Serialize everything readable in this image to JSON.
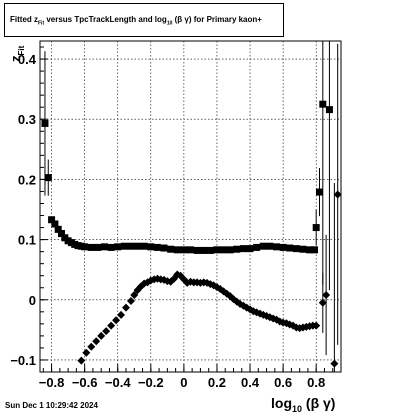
{
  "title": "Fitted  z_Fit  versus TpcTrackLength and log_10 (β γ) for Primary kaon+",
  "title_parts": {
    "t1": "Fitted  z",
    "sub1": "Fit",
    "t2": "  versus TpcTrackLength and log",
    "sub2": "10",
    "t3": " (β  γ) for Primary kaon+"
  },
  "footer": "Sun Dec  1 10:29:42 2024",
  "colors": {
    "marker": "#000000",
    "grid": "#000000",
    "background": "#ffffff"
  },
  "chart_data": {
    "type": "scatter",
    "title": "Fitted  z_Fit  versus TpcTrackLength and log_10 (β γ) for Primary kaon+",
    "xlabel": "log10 (β γ)",
    "ylabel": "zFit",
    "xlabel_parts": {
      "main": "log",
      "sub": "10",
      "rest": " (β γ)"
    },
    "ylabel_parts": {
      "main": "z",
      "sub": "Fit"
    },
    "xlim": [
      -0.87,
      0.95
    ],
    "ylim": [
      -0.12,
      0.43
    ],
    "grid": true,
    "x_ticks": [
      {
        "v": -0.8,
        "label": "−0.8"
      },
      {
        "v": -0.6,
        "label": "−0.6"
      },
      {
        "v": -0.4,
        "label": "−0.4"
      },
      {
        "v": -0.2,
        "label": "−0.2"
      },
      {
        "v": 0.0,
        "label": "0"
      },
      {
        "v": 0.2,
        "label": "0.2"
      },
      {
        "v": 0.4,
        "label": "0.4"
      },
      {
        "v": 0.6,
        "label": "0.6"
      },
      {
        "v": 0.8,
        "label": "0.8"
      }
    ],
    "y_ticks": [
      {
        "v": -0.1,
        "label": "−0.1"
      },
      {
        "v": 0.0,
        "label": "0"
      },
      {
        "v": 0.1,
        "label": "0.1"
      },
      {
        "v": 0.2,
        "label": "0.2"
      },
      {
        "v": 0.3,
        "label": "0.3"
      },
      {
        "v": 0.4,
        "label": "0.4"
      }
    ],
    "series": [
      {
        "points": [
          [
            -0.84,
            0.293,
            0.12
          ],
          [
            -0.82,
            0.203,
            0.03
          ],
          [
            -0.8,
            0.133,
            0
          ],
          [
            -0.78,
            0.126,
            0
          ],
          [
            -0.76,
            0.117,
            0
          ],
          [
            -0.74,
            0.11,
            0
          ],
          [
            -0.72,
            0.103,
            0
          ],
          [
            -0.7,
            0.098,
            0
          ],
          [
            -0.68,
            0.095,
            0
          ],
          [
            -0.66,
            0.092,
            0
          ],
          [
            -0.64,
            0.09,
            0
          ],
          [
            -0.62,
            0.089,
            0
          ],
          [
            -0.6,
            0.088,
            0
          ],
          [
            -0.56,
            0.087,
            0
          ],
          [
            -0.52,
            0.087,
            0
          ],
          [
            -0.48,
            0.088,
            0
          ],
          [
            -0.44,
            0.087,
            0
          ],
          [
            -0.4,
            0.088,
            0
          ],
          [
            -0.36,
            0.089,
            0
          ],
          [
            -0.32,
            0.089,
            0
          ],
          [
            -0.28,
            0.089,
            0
          ],
          [
            -0.24,
            0.089,
            0
          ],
          [
            -0.2,
            0.088,
            0
          ],
          [
            -0.16,
            0.087,
            0
          ],
          [
            -0.12,
            0.086,
            0
          ],
          [
            -0.08,
            0.084,
            0
          ],
          [
            -0.04,
            0.083,
            0
          ],
          [
            0.0,
            0.083,
            0
          ],
          [
            0.04,
            0.083,
            0
          ],
          [
            0.08,
            0.082,
            0
          ],
          [
            0.12,
            0.082,
            0
          ],
          [
            0.16,
            0.082,
            0
          ],
          [
            0.2,
            0.083,
            0
          ],
          [
            0.24,
            0.083,
            0
          ],
          [
            0.28,
            0.083,
            0
          ],
          [
            0.32,
            0.084,
            0
          ],
          [
            0.36,
            0.085,
            0
          ],
          [
            0.4,
            0.085,
            0
          ],
          [
            0.44,
            0.087,
            0
          ],
          [
            0.48,
            0.089,
            0
          ],
          [
            0.52,
            0.089,
            0
          ],
          [
            0.56,
            0.088,
            0
          ],
          [
            0.6,
            0.087,
            0
          ],
          [
            0.64,
            0.086,
            0
          ],
          [
            0.68,
            0.085,
            0
          ],
          [
            0.72,
            0.084,
            0
          ],
          [
            0.76,
            0.083,
            0
          ],
          [
            0.79,
            0.083,
            0
          ],
          [
            0.8,
            0.12,
            0.03
          ],
          [
            0.82,
            0.179,
            0.04
          ],
          [
            0.84,
            0.325,
            0.3
          ],
          [
            0.88,
            0.316,
            0.3
          ]
        ]
      },
      {
        "points": [
          [
            -0.62,
            -0.101,
            0
          ],
          [
            -0.59,
            -0.088,
            0
          ],
          [
            -0.56,
            -0.078,
            0
          ],
          [
            -0.53,
            -0.069,
            0
          ],
          [
            -0.5,
            -0.06,
            0
          ],
          [
            -0.47,
            -0.052,
            0
          ],
          [
            -0.44,
            -0.043,
            0
          ],
          [
            -0.41,
            -0.034,
            0
          ],
          [
            -0.38,
            -0.025,
            0
          ],
          [
            -0.35,
            -0.013,
            0
          ],
          [
            -0.32,
            -0.002,
            0
          ],
          [
            -0.3,
            0.008,
            0
          ],
          [
            -0.28,
            0.016,
            0
          ],
          [
            -0.26,
            0.022,
            0
          ],
          [
            -0.24,
            0.027,
            0
          ],
          [
            -0.22,
            0.029,
            0
          ],
          [
            -0.2,
            0.032,
            0
          ],
          [
            -0.18,
            0.034,
            0
          ],
          [
            -0.16,
            0.035,
            0
          ],
          [
            -0.14,
            0.034,
            0
          ],
          [
            -0.12,
            0.033,
            0
          ],
          [
            -0.1,
            0.031,
            0
          ],
          [
            -0.08,
            0.03,
            0
          ],
          [
            -0.06,
            0.035,
            0
          ],
          [
            -0.04,
            0.042,
            0
          ],
          [
            -0.02,
            0.04,
            0
          ],
          [
            0.0,
            0.034,
            0
          ],
          [
            0.02,
            0.028,
            0
          ],
          [
            0.04,
            0.03,
            0
          ],
          [
            0.06,
            0.029,
            0
          ],
          [
            0.08,
            0.029,
            0
          ],
          [
            0.1,
            0.028,
            0
          ],
          [
            0.12,
            0.029,
            0
          ],
          [
            0.14,
            0.028,
            0
          ],
          [
            0.16,
            0.026,
            0
          ],
          [
            0.18,
            0.024,
            0
          ],
          [
            0.2,
            0.021,
            0
          ],
          [
            0.22,
            0.018,
            0
          ],
          [
            0.24,
            0.014,
            0
          ],
          [
            0.26,
            0.01,
            0
          ],
          [
            0.28,
            0.006,
            0
          ],
          [
            0.3,
            0.001,
            0
          ],
          [
            0.32,
            -0.003,
            0
          ],
          [
            0.34,
            -0.007,
            0
          ],
          [
            0.36,
            -0.01,
            0
          ],
          [
            0.38,
            -0.013,
            0
          ],
          [
            0.4,
            -0.016,
            0
          ],
          [
            0.42,
            -0.019,
            0
          ],
          [
            0.44,
            -0.021,
            0
          ],
          [
            0.46,
            -0.023,
            0
          ],
          [
            0.48,
            -0.025,
            0
          ],
          [
            0.5,
            -0.027,
            0
          ],
          [
            0.52,
            -0.029,
            0
          ],
          [
            0.54,
            -0.031,
            0
          ],
          [
            0.56,
            -0.033,
            0
          ],
          [
            0.58,
            -0.036,
            0
          ],
          [
            0.6,
            -0.038,
            0
          ],
          [
            0.62,
            -0.039,
            0
          ],
          [
            0.64,
            -0.041,
            0
          ],
          [
            0.66,
            -0.043,
            0
          ],
          [
            0.68,
            -0.046,
            0
          ],
          [
            0.7,
            -0.047,
            0
          ],
          [
            0.72,
            -0.046,
            0
          ],
          [
            0.74,
            -0.045,
            0
          ],
          [
            0.76,
            -0.044,
            0
          ],
          [
            0.78,
            -0.043,
            0
          ],
          [
            0.8,
            -0.043,
            0
          ],
          [
            0.84,
            -0.005,
            0.05
          ],
          [
            0.86,
            0.008,
            0.1
          ],
          [
            0.91,
            -0.106,
            0.3
          ],
          [
            0.93,
            0.175,
            0.25
          ]
        ]
      }
    ]
  }
}
